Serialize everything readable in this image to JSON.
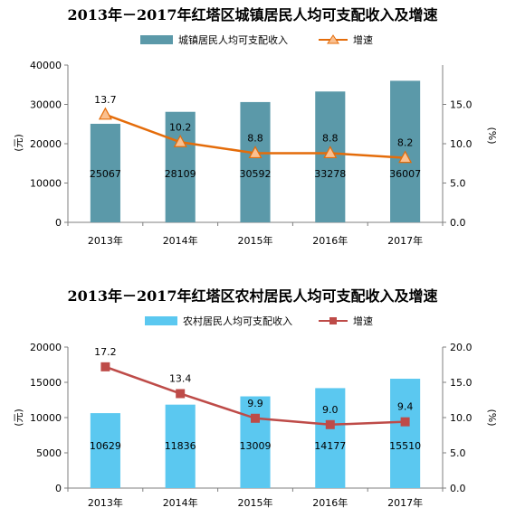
{
  "chart_data": [
    {
      "type": "bar+line",
      "title": "2013年－2017年红塔区城镇居民人均可支配收入及增速",
      "categories": [
        "2013年",
        "2014年",
        "2015年",
        "2016年",
        "2017年"
      ],
      "series": [
        {
          "name": "城镇居民人均可支配收入",
          "type": "bar",
          "axis": "left",
          "values": [
            25067,
            28109,
            30592,
            33278,
            36007
          ],
          "color": "#5b99a9"
        },
        {
          "name": "增速",
          "type": "line",
          "axis": "right",
          "values": [
            13.7,
            10.2,
            8.8,
            8.8,
            8.2
          ],
          "color": "#e46c0a",
          "marker": "triangle"
        }
      ],
      "ylabel": "(元)",
      "y2label": "(%)",
      "ylim": [
        0,
        40000
      ],
      "yticks": [
        "0",
        "10000",
        "20000",
        "30000",
        "40000"
      ],
      "y2lim": [
        0,
        20
      ],
      "y2ticks": [
        "0.0",
        "5.0",
        "10.0",
        "15.0"
      ],
      "legend": "top",
      "grid": false
    },
    {
      "type": "bar+line",
      "title": "2013年－2017年红塔区农村居民人均可支配收入及增速",
      "categories": [
        "2013年",
        "2014年",
        "2015年",
        "2016年",
        "2017年"
      ],
      "series": [
        {
          "name": "农村居民人均可支配收入",
          "type": "bar",
          "axis": "left",
          "values": [
            10629,
            11836,
            13009,
            14177,
            15510
          ],
          "color": "#5bc8f0"
        },
        {
          "name": "增速",
          "type": "line",
          "axis": "right",
          "values": [
            17.2,
            13.4,
            9.9,
            9.0,
            9.4
          ],
          "color": "#be4b48",
          "marker": "square"
        }
      ],
      "ylabel": "(元)",
      "y2label": "(%)",
      "ylim": [
        0,
        20000
      ],
      "yticks": [
        "0",
        "5000",
        "10000",
        "15000",
        "20000"
      ],
      "y2lim": [
        0,
        20
      ],
      "y2ticks": [
        "0.0",
        "5.0",
        "10.0",
        "15.0",
        "20.0"
      ],
      "legend": "top",
      "grid": false
    }
  ]
}
